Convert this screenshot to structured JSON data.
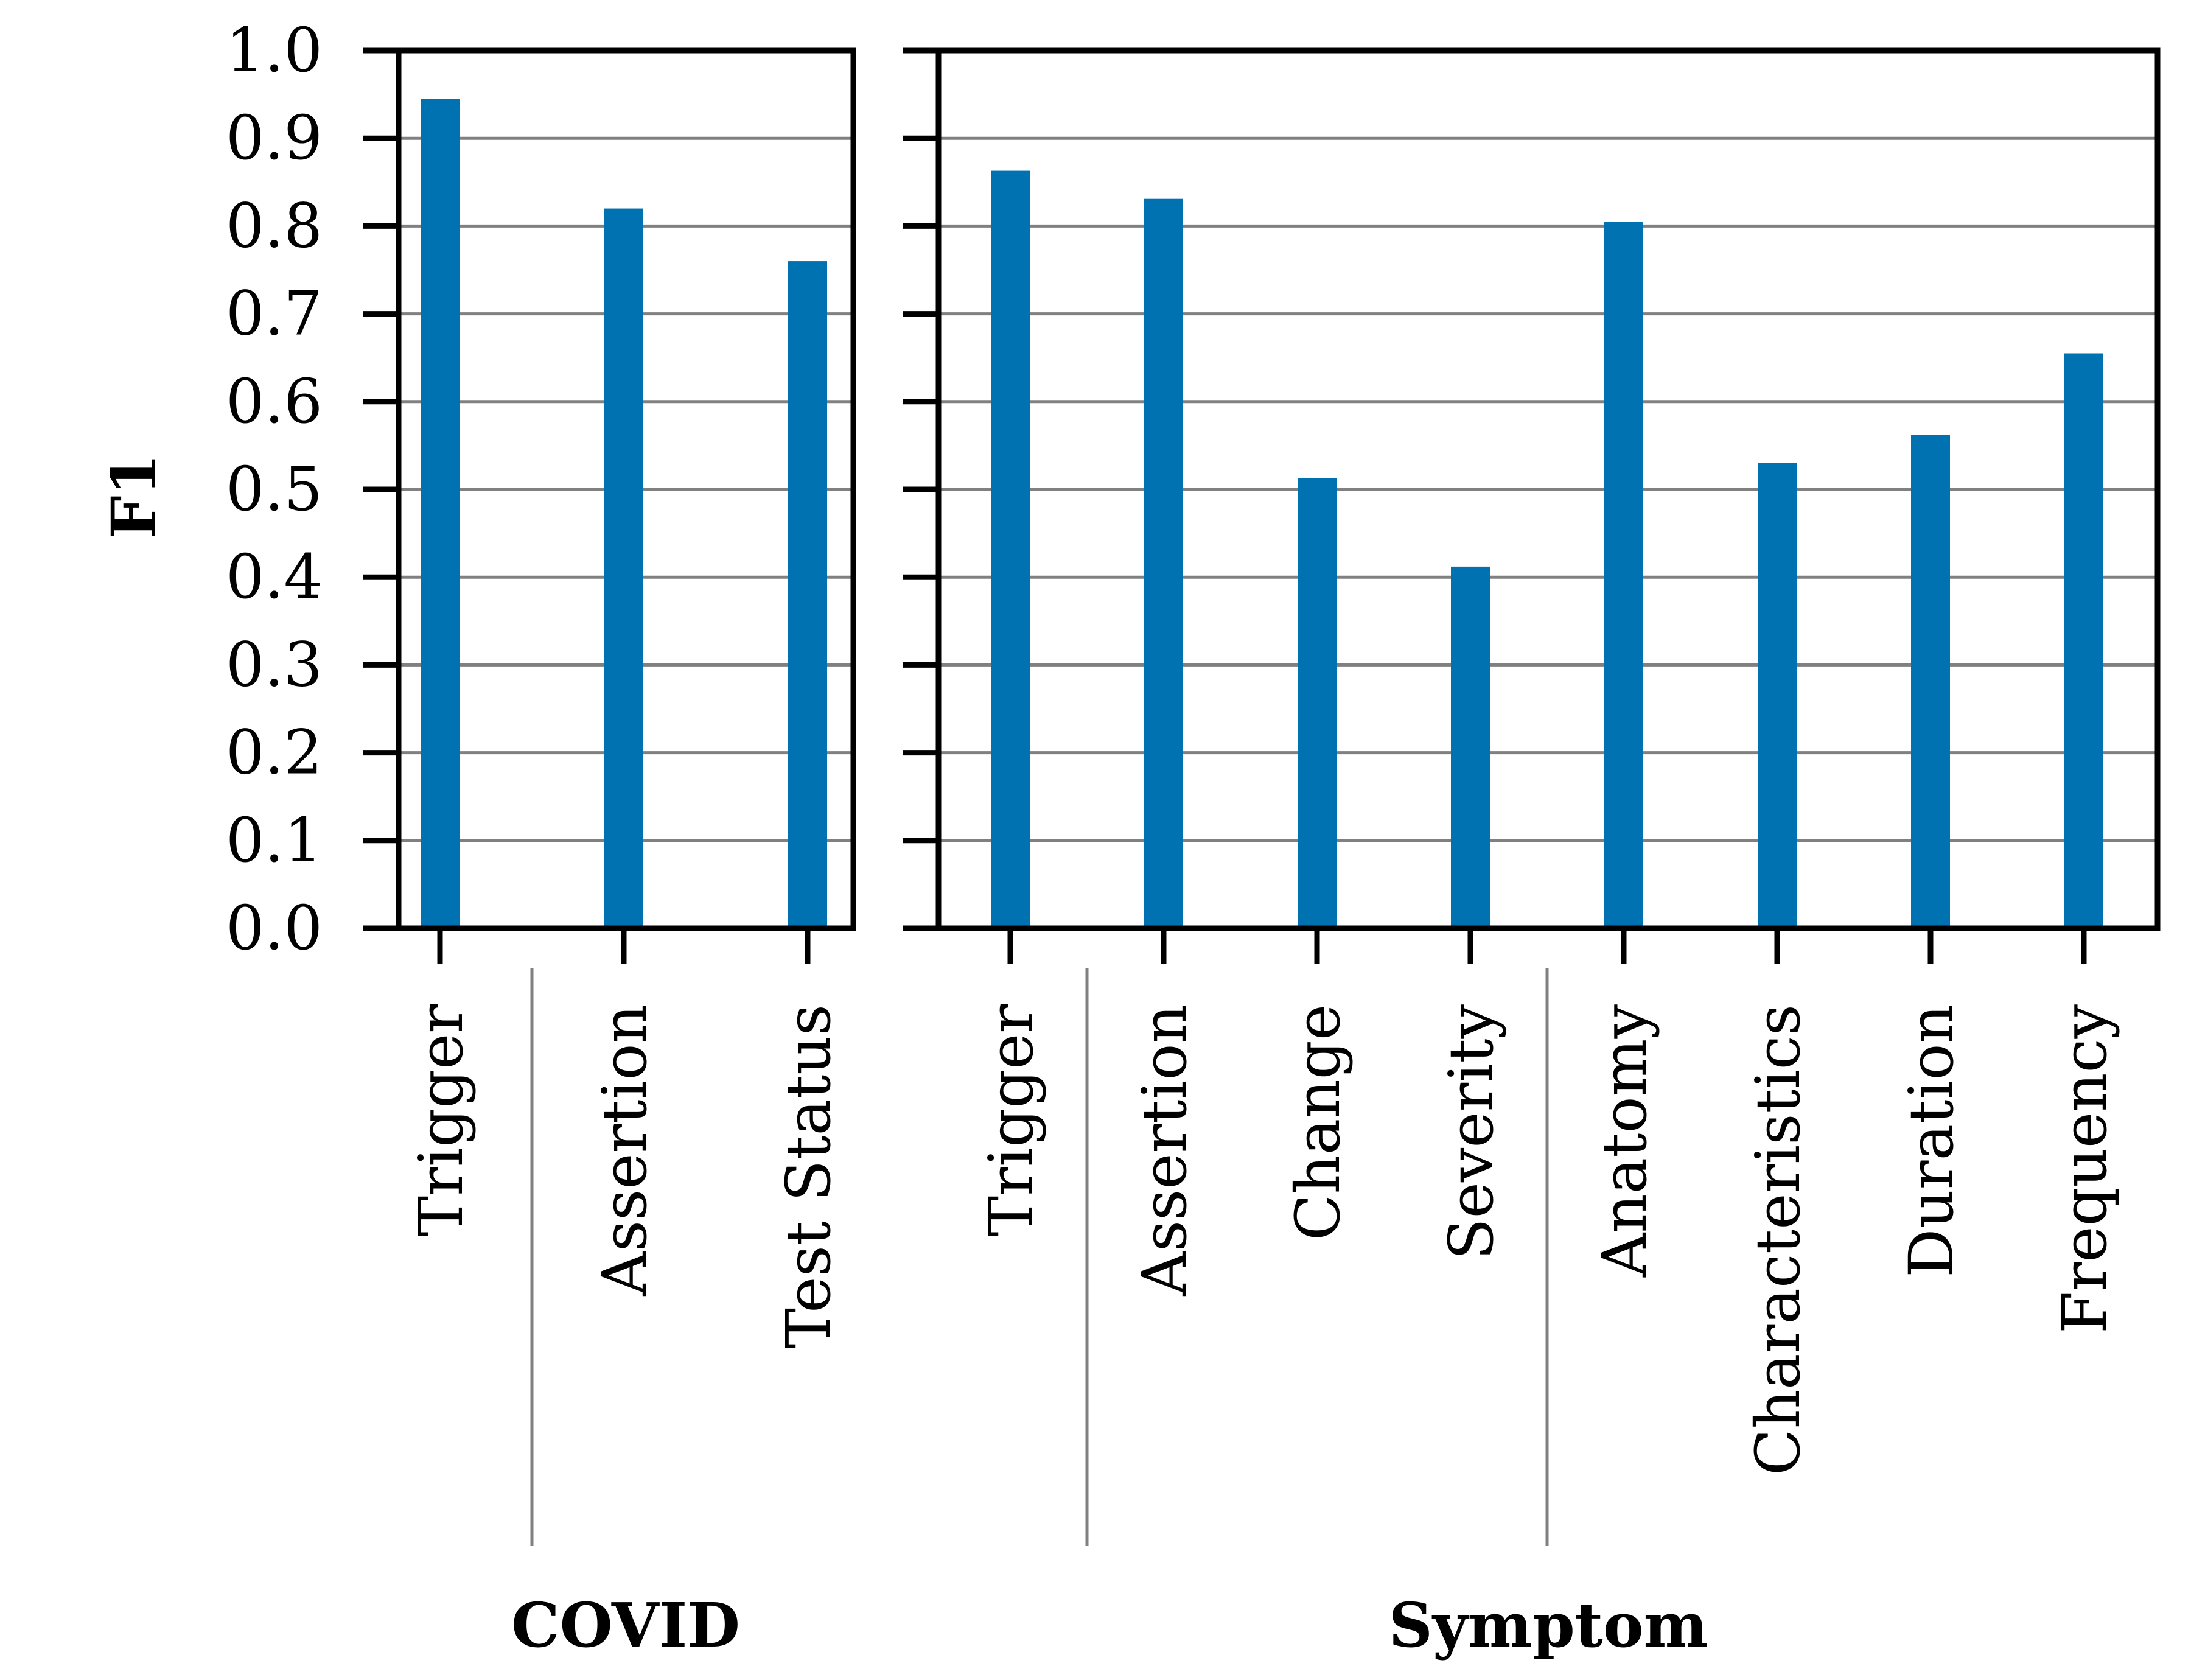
{
  "chart_data": {
    "type": "bar",
    "ylabel": "F1",
    "ylim": [
      0,
      1.0
    ],
    "yticks": [
      "0.0",
      "0.1",
      "0.2",
      "0.3",
      "0.4",
      "0.5",
      "0.6",
      "0.7",
      "0.8",
      "0.9",
      "1.0"
    ],
    "grid": true,
    "bar_color": "#0072b2",
    "grid_color": "#808080",
    "panels": [
      {
        "group": "COVID",
        "categories": [
          "Trigger",
          "Assertion",
          "Test Status"
        ],
        "values": [
          0.945,
          0.82,
          0.76
        ],
        "separators_after": [
          0
        ]
      },
      {
        "group": "Symptom",
        "categories": [
          "Trigger",
          "Assertion",
          "Change",
          "Severity",
          "Anatomy",
          "Characteristics",
          "Duration",
          "Frequency"
        ],
        "values": [
          0.863,
          0.831,
          0.513,
          0.412,
          0.805,
          0.53,
          0.562,
          0.655
        ],
        "separators_after": [
          0,
          3
        ]
      }
    ]
  }
}
